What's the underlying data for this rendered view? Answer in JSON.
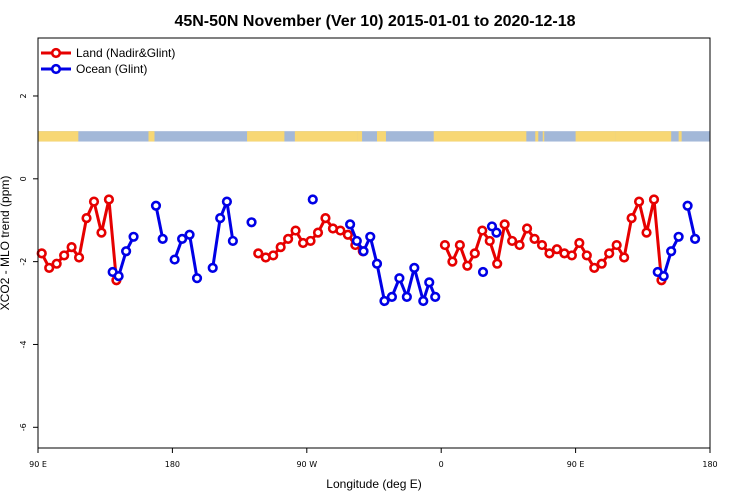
{
  "chart_data": {
    "type": "line",
    "title": "45N-50N November (Ver 10)   2015-01-01 to 2020-12-18",
    "xlabel": "Longitude (deg E)",
    "ylabel": "XCO2 - MLO trend (ppm)",
    "xlim": [
      90,
      540
    ],
    "ylim": [
      -6.5,
      3.4
    ],
    "x_ticks": [
      {
        "value": 90,
        "label": "90 E"
      },
      {
        "value": 180,
        "label": "180"
      },
      {
        "value": 270,
        "label": "90 W"
      },
      {
        "value": 360,
        "label": "0"
      },
      {
        "value": 450,
        "label": "90 E"
      },
      {
        "value": 540,
        "label": "180"
      }
    ],
    "y_ticks": [
      2,
      0,
      -2,
      -4,
      -6
    ],
    "legend_position": "top-left",
    "grid": false,
    "land_strip": {
      "y_range": [
        0.9,
        1.15
      ],
      "land_color": "#F7D774",
      "ocean_color": "#A3B8D8"
    },
    "series": [
      {
        "name": "Land (Nadir&Glint)",
        "color": "#E60000",
        "segments": [
          [
            [
              92.5,
              -1.8
            ],
            [
              97.5,
              -2.15
            ],
            [
              102.5,
              -2.05
            ],
            [
              107.5,
              -1.85
            ],
            [
              112.5,
              -1.65
            ],
            [
              117.5,
              -1.9
            ],
            [
              122.5,
              -0.95
            ],
            [
              127.5,
              -0.55
            ],
            [
              132.5,
              -1.3
            ],
            [
              137.5,
              -0.5
            ],
            [
              142.5,
              -2.45
            ]
          ],
          [
            [
              237.5,
              -1.8
            ],
            [
              242.5,
              -1.9
            ],
            [
              247.5,
              -1.85
            ],
            [
              252.5,
              -1.65
            ],
            [
              257.5,
              -1.45
            ],
            [
              262.5,
              -1.25
            ],
            [
              267.5,
              -1.55
            ],
            [
              272.5,
              -1.5
            ],
            [
              277.5,
              -1.3
            ],
            [
              282.5,
              -0.95
            ],
            [
              287.5,
              -1.2
            ],
            [
              292.5,
              -1.25
            ],
            [
              297.5,
              -1.35
            ],
            [
              302.5,
              -1.6
            ],
            [
              307.5,
              -1.75
            ]
          ],
          [
            [
              362.5,
              -1.6
            ],
            [
              367.5,
              -2.0
            ],
            [
              372.5,
              -1.6
            ],
            [
              377.5,
              -2.1
            ],
            [
              382.5,
              -1.8
            ],
            [
              387.5,
              -1.25
            ],
            [
              392.5,
              -1.5
            ],
            [
              397.5,
              -2.05
            ],
            [
              402.5,
              -1.1
            ],
            [
              407.5,
              -1.5
            ],
            [
              412.5,
              -1.6
            ],
            [
              417.5,
              -1.2
            ],
            [
              422.5,
              -1.45
            ],
            [
              427.5,
              -1.6
            ],
            [
              432.5,
              -1.8
            ],
            [
              437.5,
              -1.7
            ],
            [
              442.5,
              -1.8
            ],
            [
              447.5,
              -1.85
            ],
            [
              452.5,
              -1.55
            ],
            [
              457.5,
              -1.85
            ],
            [
              462.5,
              -2.15
            ],
            [
              467.5,
              -2.05
            ],
            [
              472.5,
              -1.8
            ],
            [
              477.5,
              -1.6
            ],
            [
              482.5,
              -1.9
            ],
            [
              487.5,
              -0.95
            ],
            [
              492.5,
              -0.55
            ],
            [
              497.5,
              -1.3
            ],
            [
              502.5,
              -0.5
            ],
            [
              507.5,
              -2.45
            ]
          ]
        ]
      },
      {
        "name": "Ocean (Glint)",
        "color": "#0000E6",
        "segments": [
          [
            [
              140,
              -2.25
            ],
            [
              144,
              -2.35
            ],
            [
              149,
              -1.75
            ],
            [
              154,
              -1.4
            ]
          ],
          [
            [
              169,
              -0.65
            ],
            [
              173.5,
              -1.45
            ]
          ],
          [
            [
              181.5,
              -1.95
            ],
            [
              186.5,
              -1.45
            ],
            [
              191.5,
              -1.35
            ],
            [
              196.5,
              -2.4
            ]
          ],
          [
            [
              207,
              -2.15
            ],
            [
              212,
              -0.95
            ],
            [
              216.5,
              -0.55
            ],
            [
              220.5,
              -1.5
            ]
          ],
          [
            [
              233,
              -1.05
            ]
          ],
          [
            [
              274,
              -0.5
            ]
          ],
          [
            [
              299,
              -1.1
            ],
            [
              303.5,
              -1.5
            ],
            [
              308,
              -1.75
            ],
            [
              312.5,
              -1.4
            ],
            [
              317,
              -2.05
            ],
            [
              322,
              -2.95
            ],
            [
              327,
              -2.85
            ],
            [
              332,
              -2.4
            ],
            [
              337,
              -2.85
            ],
            [
              342,
              -2.15
            ],
            [
              348,
              -2.95
            ],
            [
              352,
              -2.5
            ],
            [
              356,
              -2.85
            ]
          ],
          [
            [
              388,
              -2.25
            ]
          ],
          [
            [
              394,
              -1.15
            ],
            [
              397,
              -1.3
            ]
          ],
          [
            [
              505,
              -2.25
            ],
            [
              509,
              -2.35
            ],
            [
              514,
              -1.75
            ],
            [
              519,
              -1.4
            ]
          ],
          [
            [
              525,
              -0.65
            ],
            [
              530,
              -1.45
            ]
          ]
        ]
      }
    ]
  }
}
